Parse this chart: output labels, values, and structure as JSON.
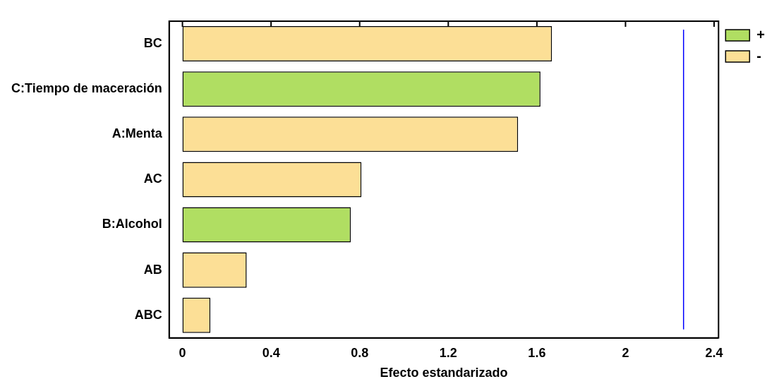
{
  "chart_data": {
    "type": "bar",
    "orientation": "horizontal",
    "xlabel": "Efecto estandarizado",
    "categories": [
      "BC",
      "C:Tiempo de maceración",
      "A:Menta",
      "AC",
      "B:Alcohol",
      "AB",
      "ABC"
    ],
    "series": [
      {
        "name": "+",
        "color": "#b0de62",
        "values": [
          null,
          1.616,
          null,
          null,
          0.76,
          null,
          null
        ]
      },
      {
        "name": "-",
        "color": "#fcdf96",
        "values": [
          1.668,
          null,
          1.515,
          0.808,
          null,
          0.29,
          0.126
        ]
      }
    ],
    "xlim": [
      -0.06,
      2.42
    ],
    "xticks": [
      0,
      0.4,
      0.8,
      1.2,
      1.6,
      2,
      2.4
    ],
    "ref_lines": [
      {
        "axis": "x",
        "value": 2.262,
        "color": "#0000ff"
      }
    ],
    "grid": false,
    "legend": "top right"
  }
}
